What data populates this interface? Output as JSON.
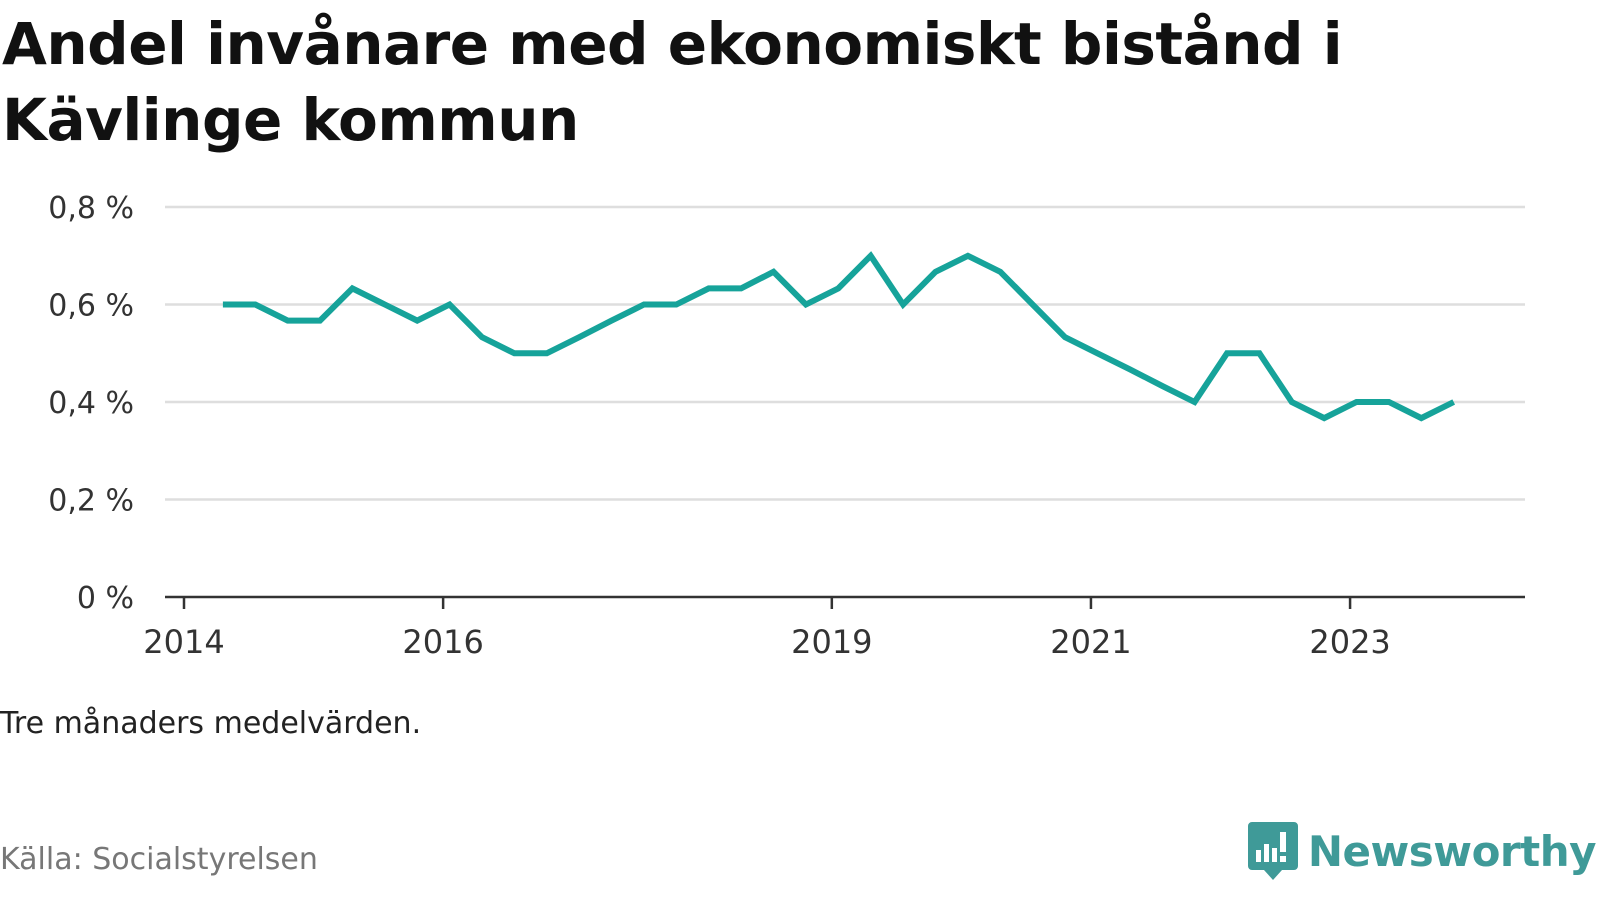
{
  "header": {
    "title": "Andel invånare med ekonomiskt bistånd i Kävlinge kommun"
  },
  "footer": {
    "note": "Tre månaders medelvärden.",
    "source": "Källa: Socialstyrelsen",
    "brand": "Newsworthy",
    "brand_color": "#3f9a98"
  },
  "chart_data": {
    "type": "line",
    "title": "Andel invånare med ekonomiskt bistånd i Kävlinge kommun",
    "xlabel": "",
    "ylabel": "",
    "ylim": [
      0,
      0.8
    ],
    "yticks": [
      0,
      0.2,
      0.4,
      0.6,
      0.8
    ],
    "ytick_labels": [
      "0 %",
      "0,2 %",
      "0,4 %",
      "0,6 %",
      "0,8 %"
    ],
    "xlim": [
      2014,
      2024.3
    ],
    "xticks": [
      2014,
      2016,
      2019,
      2021,
      2023
    ],
    "xtick_labels": [
      "2014",
      "2016",
      "2019",
      "2021",
      "2023"
    ],
    "grid": true,
    "line_color": "#16a39a",
    "series": [
      {
        "x": [
          2014.3,
          2014.55,
          2014.8,
          2015.05,
          2015.3,
          2015.55,
          2015.8,
          2016.05,
          2016.3,
          2016.55,
          2016.8,
          2017.05,
          2017.3,
          2017.55,
          2017.8,
          2018.05,
          2018.3,
          2018.55,
          2018.8,
          2019.05,
          2019.3,
          2019.55,
          2019.8,
          2020.05,
          2020.3,
          2020.55,
          2020.8,
          2021.05,
          2021.3,
          2021.55,
          2021.8,
          2022.05,
          2022.3,
          2022.55,
          2022.8,
          2023.05,
          2023.3,
          2023.55,
          2023.8
        ],
        "values": [
          0.6,
          0.6,
          0.567,
          0.567,
          0.633,
          0.6,
          0.567,
          0.6,
          0.533,
          0.5,
          0.5,
          0.533,
          0.567,
          0.6,
          0.6,
          0.633,
          0.633,
          0.667,
          0.6,
          0.633,
          0.7,
          0.6,
          0.667,
          0.7,
          0.667,
          0.6,
          0.533,
          0.5,
          0.467,
          0.433,
          0.4,
          0.5,
          0.5,
          0.4,
          0.367,
          0.4,
          0.4,
          0.367,
          0.4
        ]
      }
    ]
  }
}
